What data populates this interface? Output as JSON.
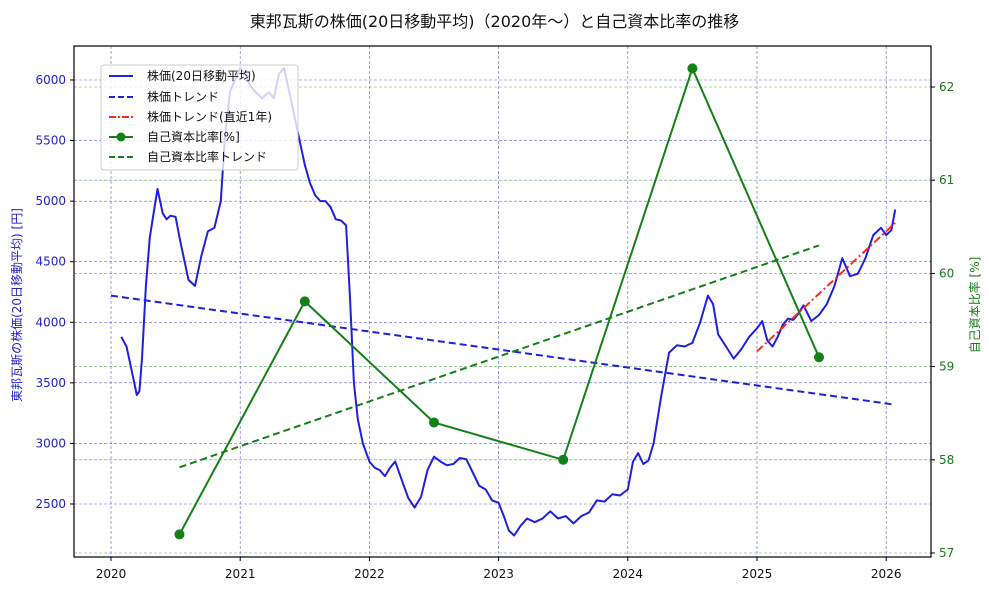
{
  "chart_data": {
    "type": "line",
    "title": "東邦瓦斯の株価(20日移動平均)（2020年〜）と自己資本比率の推移",
    "xlabel": "",
    "ylabel_left": "東邦瓦斯の株価(20日移動平均) [円]",
    "ylabel_right": "自己資本比率 [%]",
    "x_ticks": [
      "2020",
      "2021",
      "2022",
      "2023",
      "2024",
      "2025",
      "2026"
    ],
    "y_left_ticks": [
      2500,
      3000,
      3500,
      4000,
      4500,
      5000,
      5500,
      6000
    ],
    "y_right_ticks": [
      57,
      58,
      59,
      60,
      61,
      62
    ],
    "ylim_left": [
      2060,
      6280
    ],
    "ylim_right": [
      56.95,
      62.45
    ],
    "xlim": [
      2019.7,
      2026.35
    ],
    "grid": true,
    "legend_position": "upper left",
    "legend": [
      {
        "label": "株価(20日移動平均)",
        "style": "solid",
        "color": "#1f1fe0"
      },
      {
        "label": "株価トレンド",
        "style": "dashed",
        "color": "#1f1fe0"
      },
      {
        "label": "株価トレンド(直近1年)",
        "style": "dashdot",
        "color": "#ff2a1a"
      },
      {
        "label": "自己資本比率[%]",
        "style": "solid-marker",
        "color": "#158015"
      },
      {
        "label": "自己資本比率トレンド",
        "style": "dashed",
        "color": "#158015"
      }
    ],
    "series": [
      {
        "name": "株価(20日移動平均)",
        "axis": "left",
        "x": [
          2020.08,
          2020.12,
          2020.16,
          2020.2,
          2020.22,
          2020.24,
          2020.27,
          2020.3,
          2020.33,
          2020.36,
          2020.38,
          2020.4,
          2020.43,
          2020.46,
          2020.5,
          2020.53,
          2020.57,
          2020.6,
          2020.65,
          2020.7,
          2020.75,
          2020.8,
          2020.85,
          2020.88,
          2020.92,
          2020.96,
          2021.0,
          2021.04,
          2021.08,
          2021.12,
          2021.17,
          2021.22,
          2021.26,
          2021.3,
          2021.34,
          2021.38,
          2021.42,
          2021.46,
          2021.5,
          2021.54,
          2021.58,
          2021.62,
          2021.66,
          2021.7,
          2021.74,
          2021.78,
          2021.82,
          2021.85,
          2021.88,
          2021.91,
          2021.95,
          2022.0,
          2022.04,
          2022.08,
          2022.12,
          2022.16,
          2022.2,
          2022.25,
          2022.3,
          2022.35,
          2022.4,
          2022.45,
          2022.5,
          2022.55,
          2022.6,
          2022.65,
          2022.7,
          2022.75,
          2022.8,
          2022.85,
          2022.9,
          2022.95,
          2023.0,
          2023.04,
          2023.08,
          2023.12,
          2023.17,
          2023.22,
          2023.28,
          2023.34,
          2023.4,
          2023.46,
          2023.52,
          2023.58,
          2023.64,
          2023.7,
          2023.76,
          2023.82,
          2023.88,
          2023.94,
          2024.0,
          2024.04,
          2024.08,
          2024.12,
          2024.16,
          2024.2,
          2024.26,
          2024.32,
          2024.38,
          2024.44,
          2024.5,
          2024.56,
          2024.62,
          2024.66,
          2024.7,
          2024.76,
          2024.82,
          2024.88,
          2024.94,
          2025.0,
          2025.04,
          2025.08,
          2025.12,
          2025.16,
          2025.2,
          2025.24,
          2025.28,
          2025.32,
          2025.36,
          2025.42,
          2025.48,
          2025.54,
          2025.6,
          2025.66,
          2025.72,
          2025.78,
          2025.84,
          2025.9,
          2025.96,
          2026.0,
          2026.04,
          2026.07
        ],
        "values": [
          3880,
          3800,
          3600,
          3400,
          3430,
          3700,
          4300,
          4700,
          4900,
          5100,
          5000,
          4900,
          4850,
          4880,
          4870,
          4700,
          4500,
          4350,
          4300,
          4550,
          4750,
          4780,
          5000,
          5500,
          5900,
          6000,
          6100,
          6050,
          5950,
          5900,
          5850,
          5900,
          5850,
          6050,
          6100,
          5900,
          5700,
          5500,
          5300,
          5150,
          5050,
          5000,
          5000,
          4950,
          4850,
          4840,
          4800,
          4200,
          3500,
          3200,
          3000,
          2850,
          2800,
          2780,
          2730,
          2800,
          2850,
          2700,
          2550,
          2470,
          2560,
          2780,
          2890,
          2850,
          2820,
          2830,
          2880,
          2870,
          2760,
          2650,
          2620,
          2530,
          2510,
          2400,
          2280,
          2240,
          2320,
          2380,
          2350,
          2380,
          2440,
          2380,
          2400,
          2340,
          2400,
          2430,
          2530,
          2520,
          2580,
          2570,
          2620,
          2850,
          2920,
          2830,
          2860,
          3000,
          3400,
          3750,
          3810,
          3800,
          3830,
          4000,
          4220,
          4150,
          3900,
          3800,
          3700,
          3780,
          3880,
          3950,
          4010,
          3850,
          3800,
          3880,
          3980,
          4030,
          4020,
          4070,
          4140,
          4010,
          4060,
          4150,
          4300,
          4530,
          4380,
          4400,
          4530,
          4720,
          4780,
          4720,
          4760,
          4930
        ]
      },
      {
        "name": "株価トレンド",
        "axis": "left",
        "x": [
          2020.0,
          2026.07
        ],
        "values": [
          4220,
          3320
        ]
      },
      {
        "name": "株価トレンド(直近1年)",
        "axis": "left",
        "x": [
          2025.0,
          2026.07
        ],
        "values": [
          3760,
          4820
        ]
      },
      {
        "name": "自己資本比率[%]",
        "axis": "right",
        "x": [
          2020.53,
          2021.5,
          2022.5,
          2023.5,
          2024.5,
          2025.48
        ],
        "values": [
          57.2,
          59.7,
          58.4,
          58.0,
          62.2,
          59.1
        ]
      },
      {
        "name": "自己資本比率トレンド",
        "axis": "right",
        "x": [
          2020.53,
          2025.48
        ],
        "values": [
          57.92,
          60.3
        ]
      }
    ]
  },
  "colors": {
    "price": "#1f1fe0",
    "recent_trend": "#ff2a1a",
    "equity": "#158015",
    "grid_left": "#6464d8",
    "grid_right": "#5aa85a"
  }
}
